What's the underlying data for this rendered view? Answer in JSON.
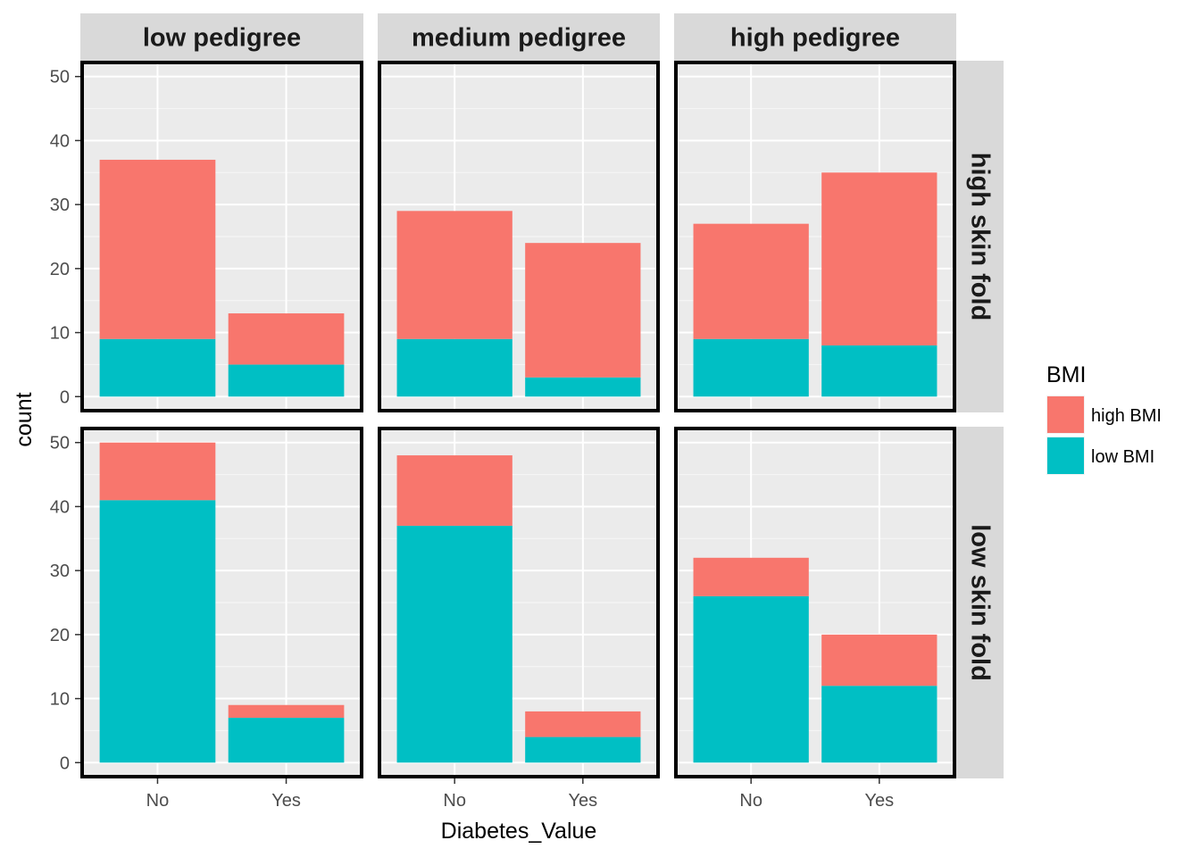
{
  "chart_data": {
    "type": "bar",
    "stacked": true,
    "x_axis_title": "Diabetes_Value",
    "y_axis_title": "count",
    "categories": [
      "No",
      "Yes"
    ],
    "ylim": [
      0,
      50
    ],
    "yticks": [
      0,
      10,
      20,
      30,
      40,
      50
    ],
    "grid": true,
    "column_facets": [
      "low pedigree",
      "medium pedigree",
      "high pedigree"
    ],
    "row_facets": [
      "high skin fold",
      "low skin fold"
    ],
    "legend": {
      "title": "BMI",
      "position": "right",
      "items": [
        {
          "label": "high BMI",
          "color": "#F8766D"
        },
        {
          "label": "low BMI",
          "color": "#00BFC4"
        }
      ]
    },
    "panels": [
      {
        "row": "high skin fold",
        "col": "low pedigree",
        "series": [
          {
            "name": "low BMI",
            "values": [
              9,
              5
            ]
          },
          {
            "name": "high BMI",
            "values": [
              28,
              8
            ]
          }
        ]
      },
      {
        "row": "high skin fold",
        "col": "medium pedigree",
        "series": [
          {
            "name": "low BMI",
            "values": [
              9,
              3
            ]
          },
          {
            "name": "high BMI",
            "values": [
              20,
              21
            ]
          }
        ]
      },
      {
        "row": "high skin fold",
        "col": "high pedigree",
        "series": [
          {
            "name": "low BMI",
            "values": [
              9,
              8
            ]
          },
          {
            "name": "high BMI",
            "values": [
              18,
              27
            ]
          }
        ]
      },
      {
        "row": "low skin fold",
        "col": "low pedigree",
        "series": [
          {
            "name": "low BMI",
            "values": [
              41,
              7
            ]
          },
          {
            "name": "high BMI",
            "values": [
              9,
              2
            ]
          }
        ]
      },
      {
        "row": "low skin fold",
        "col": "medium pedigree",
        "series": [
          {
            "name": "low BMI",
            "values": [
              37,
              4
            ]
          },
          {
            "name": "high BMI",
            "values": [
              11,
              4
            ]
          }
        ]
      },
      {
        "row": "low skin fold",
        "col": "high pedigree",
        "series": [
          {
            "name": "low BMI",
            "values": [
              26,
              12
            ]
          },
          {
            "name": "high BMI",
            "values": [
              6,
              8
            ]
          }
        ]
      }
    ]
  }
}
